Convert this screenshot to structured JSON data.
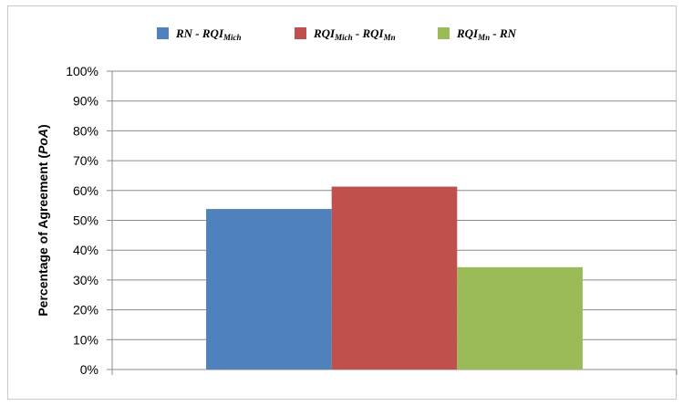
{
  "chart_data": {
    "type": "bar",
    "categories": [
      ""
    ],
    "series": [
      {
        "name": "RN - RQI",
        "name_main": "RN - RQI",
        "name_sub": "Mich",
        "name_tail": "",
        "color": "#4f81bd",
        "values": [
          53.8
        ]
      },
      {
        "name": "RQI - RQI",
        "name_main": "RQI",
        "name_sub": "Mich",
        "name_tail": " - RQI",
        "name_sub2": "Mn",
        "color": "#c0504d",
        "values": [
          61.3
        ]
      },
      {
        "name": "RQI - RN",
        "name_main": "RQI",
        "name_sub": "Mn",
        "name_tail": " - RN",
        "color": "#9bbb59",
        "values": [
          34.3
        ]
      }
    ],
    "title": "",
    "xlabel": "",
    "ylabel_main": "Percentage of Agreement (",
    "ylabel_italic": "PoA",
    "ylabel_end": ")",
    "ylim": [
      0,
      100
    ],
    "yticks": [
      "0%",
      "10%",
      "20%",
      "30%",
      "40%",
      "50%",
      "60%",
      "70%",
      "80%",
      "90%",
      "100%"
    ],
    "grid": true,
    "legend": "top"
  }
}
